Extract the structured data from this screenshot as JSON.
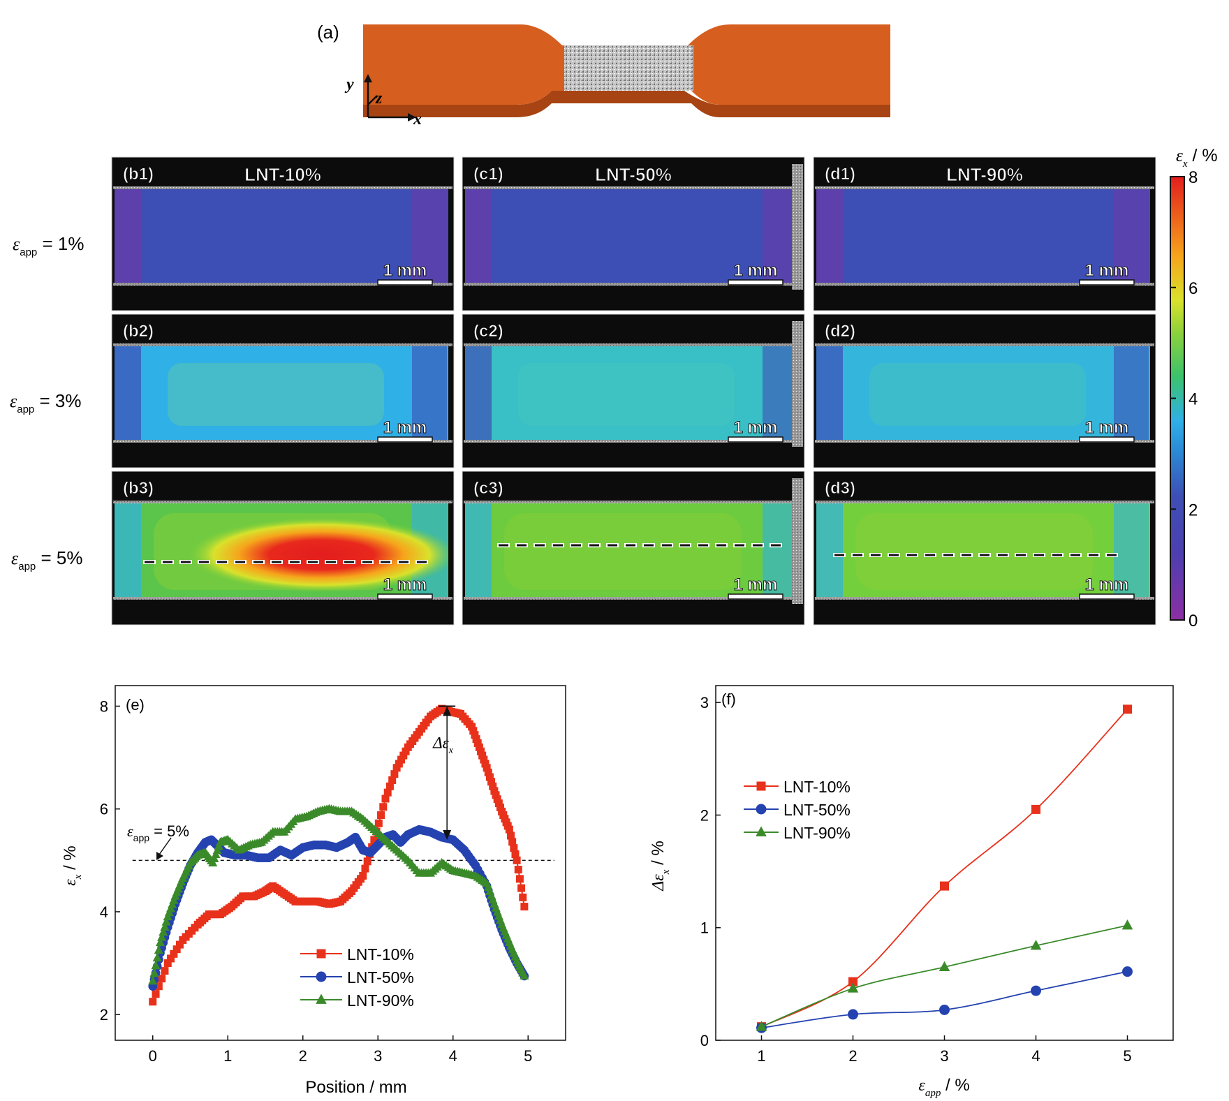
{
  "panel_a": {
    "label": "(a)",
    "axes": {
      "y": "y",
      "z": "z",
      "x": "x"
    },
    "colors": {
      "specimen": "#d65f1f",
      "speckle": "#b9b9b9"
    }
  },
  "colorbar": {
    "title_sym": "ε",
    "title_sub": "x",
    "title_unit": " / %",
    "ticks": [
      "8",
      "6",
      "4",
      "2",
      "0"
    ],
    "range": [
      0,
      8
    ],
    "colors": [
      "#8b2fa3",
      "#3d4fb5",
      "#2fb0e6",
      "#3bc36b",
      "#d8e22c",
      "#f6a51c",
      "#e31d1d"
    ]
  },
  "row_labels": [
    {
      "sym": "ε",
      "sub": "app",
      "text": " = 1%"
    },
    {
      "sym": "ε",
      "sub": "app",
      "text": " = 3%"
    },
    {
      "sym": "ε",
      "sub": "app",
      "text": " = 5%"
    }
  ],
  "maps": [
    {
      "id": "b1",
      "label": "(b1)",
      "title": "LNT-10%",
      "scale": "1 mm"
    },
    {
      "id": "c1",
      "label": "(c1)",
      "title": "LNT-50%",
      "scale": "1 mm"
    },
    {
      "id": "d1",
      "label": "(d1)",
      "title": "LNT-90%",
      "scale": "1 mm"
    },
    {
      "id": "b2",
      "label": "(b2)",
      "title": "",
      "scale": "1 mm"
    },
    {
      "id": "c2",
      "label": "(c2)",
      "title": "",
      "scale": "1 mm"
    },
    {
      "id": "d2",
      "label": "(d2)",
      "title": "",
      "scale": "1 mm"
    },
    {
      "id": "b3",
      "label": "(b3)",
      "title": "",
      "scale": "1 mm"
    },
    {
      "id": "c3",
      "label": "(c3)",
      "title": "",
      "scale": "1 mm"
    },
    {
      "id": "d3",
      "label": "(d3)",
      "title": "",
      "scale": "1 mm"
    }
  ],
  "chart_data": [
    {
      "id": "e",
      "type": "line",
      "panel_label": "(e)",
      "xlabel": "Position / mm",
      "ylabel_sym": "ε",
      "ylabel_sub": "x",
      "ylabel_unit": " / %",
      "xlim": [
        -0.5,
        5.5
      ],
      "ylim": [
        1.5,
        8.4
      ],
      "xticks": [
        0,
        1,
        2,
        3,
        4,
        5
      ],
      "yticks": [
        2,
        4,
        6,
        8
      ],
      "reference_line": {
        "y": 5,
        "label_sym": "ε",
        "label_sub": "app",
        "label_text": " = 5%"
      },
      "annotation": {
        "sym": "Δε",
        "sub": "x",
        "x": 3.92,
        "y_top": 8.0,
        "y_bottom": 5.4
      },
      "legend_position": "bottom-center",
      "series": [
        {
          "name": "LNT-10%",
          "marker": "square",
          "color": "#e8311b",
          "x": [
            0,
            0.2,
            0.4,
            0.6,
            0.75,
            0.9,
            1.05,
            1.2,
            1.35,
            1.5,
            1.6,
            1.75,
            1.9,
            2.05,
            2.2,
            2.35,
            2.5,
            2.65,
            2.8,
            2.95,
            3.1,
            3.25,
            3.4,
            3.55,
            3.7,
            3.85,
            3.95,
            4.1,
            4.25,
            4.35,
            4.45,
            4.55,
            4.65,
            4.75,
            4.85,
            4.95
          ],
          "y": [
            2.25,
            3.0,
            3.45,
            3.75,
            3.95,
            3.95,
            4.1,
            4.3,
            4.3,
            4.4,
            4.5,
            4.35,
            4.2,
            4.2,
            4.2,
            4.15,
            4.2,
            4.4,
            4.7,
            5.4,
            6.2,
            6.8,
            7.2,
            7.5,
            7.8,
            7.95,
            7.9,
            7.85,
            7.6,
            7.2,
            6.8,
            6.35,
            5.95,
            5.6,
            5.0,
            4.1
          ]
        },
        {
          "name": "LNT-50%",
          "marker": "circle",
          "color": "#2442b0",
          "x": [
            0,
            0.1,
            0.2,
            0.3,
            0.4,
            0.5,
            0.6,
            0.7,
            0.78,
            0.85,
            0.95,
            1.1,
            1.25,
            1.4,
            1.55,
            1.7,
            1.85,
            2.0,
            2.15,
            2.3,
            2.45,
            2.6,
            2.7,
            2.8,
            2.9,
            3.0,
            3.1,
            3.2,
            3.3,
            3.4,
            3.55,
            3.7,
            3.85,
            4.0,
            4.15,
            4.3,
            4.45,
            4.55,
            4.65,
            4.75,
            4.85,
            4.95
          ],
          "y": [
            2.55,
            3.2,
            3.7,
            4.15,
            4.55,
            4.9,
            5.15,
            5.35,
            5.4,
            5.3,
            5.15,
            5.1,
            5.1,
            5.05,
            5.05,
            5.2,
            5.1,
            5.25,
            5.3,
            5.3,
            5.25,
            5.35,
            5.45,
            5.2,
            5.15,
            5.3,
            5.45,
            5.5,
            5.35,
            5.5,
            5.6,
            5.55,
            5.45,
            5.4,
            5.2,
            4.9,
            4.5,
            4.05,
            3.65,
            3.3,
            3.0,
            2.75
          ]
        },
        {
          "name": "LNT-90%",
          "marker": "triangle",
          "color": "#3a8a2a",
          "x": [
            0,
            0.1,
            0.2,
            0.3,
            0.4,
            0.5,
            0.6,
            0.7,
            0.8,
            0.9,
            1.0,
            1.15,
            1.3,
            1.45,
            1.6,
            1.75,
            1.9,
            2.05,
            2.2,
            2.35,
            2.5,
            2.65,
            2.8,
            2.95,
            3.1,
            3.25,
            3.4,
            3.55,
            3.7,
            3.85,
            4.0,
            4.15,
            4.3,
            4.45,
            4.55,
            4.65,
            4.75,
            4.85,
            4.95
          ],
          "y": [
            2.65,
            3.4,
            3.9,
            4.3,
            4.65,
            4.95,
            5.1,
            5.15,
            4.95,
            5.35,
            5.4,
            5.2,
            5.3,
            5.35,
            5.55,
            5.55,
            5.8,
            5.85,
            5.95,
            6.0,
            5.95,
            5.95,
            5.8,
            5.6,
            5.4,
            5.2,
            5.0,
            4.75,
            4.75,
            4.95,
            4.8,
            4.75,
            4.7,
            4.55,
            4.15,
            3.75,
            3.4,
            3.05,
            2.75
          ]
        }
      ]
    },
    {
      "id": "f",
      "type": "line",
      "panel_label": "(f)",
      "xlabel_sym": "ε",
      "xlabel_sub": "app",
      "xlabel_unit": " / %",
      "ylabel_sym": "Δε",
      "ylabel_sub": "x",
      "ylabel_unit": " / %",
      "xlim": [
        0.5,
        5.5
      ],
      "ylim": [
        0,
        3.15
      ],
      "xticks": [
        1,
        2,
        3,
        4,
        5
      ],
      "yticks": [
        0,
        1,
        2,
        3
      ],
      "legend_position": "top-left",
      "x": [
        1,
        2,
        3,
        4,
        5
      ],
      "series": [
        {
          "name": "LNT-10%",
          "marker": "square",
          "color": "#e8311b",
          "values": [
            0.12,
            0.52,
            1.37,
            2.05,
            2.94
          ]
        },
        {
          "name": "LNT-50%",
          "marker": "circle",
          "color": "#2442b0",
          "values": [
            0.11,
            0.23,
            0.27,
            0.44,
            0.61
          ]
        },
        {
          "name": "LNT-90%",
          "marker": "triangle",
          "color": "#3a8a2a",
          "values": [
            0.12,
            0.46,
            0.65,
            0.84,
            1.02
          ]
        }
      ]
    }
  ]
}
